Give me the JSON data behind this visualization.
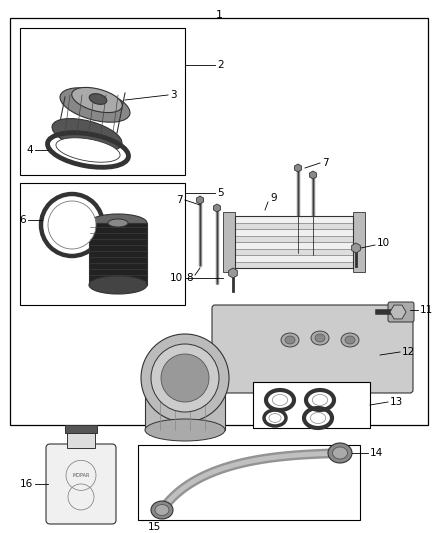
{
  "bg_color": "#ffffff",
  "line_color": "#000000",
  "gray_dark": "#333333",
  "gray_mid": "#666666",
  "gray_light": "#aaaaaa",
  "gray_lighter": "#cccccc",
  "font_size": 7.5,
  "title_font_size": 8
}
